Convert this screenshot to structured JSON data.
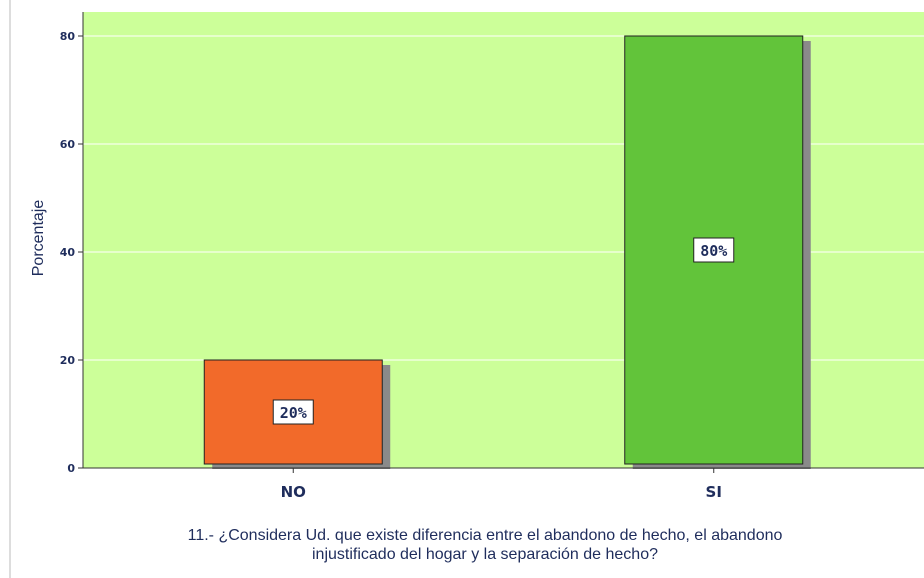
{
  "chart_data": {
    "type": "bar",
    "categories": [
      "NO",
      "SI"
    ],
    "values": [
      20,
      80
    ],
    "data_labels": [
      "20%",
      "80%"
    ],
    "colors": [
      "#f26a2a",
      "#62c43a"
    ],
    "plot_background": "#ccff99",
    "shadow_color": "#8a8a8a",
    "title": "",
    "ylabel": "Porcentaje",
    "xlabel_lines": [
      "11.- ¿Considera Ud. que existe diferencia entre el abandono de hecho, el abandono",
      "injustificado del hogar y la separación de hecho?"
    ],
    "yticks": [
      0,
      20,
      40,
      60,
      80
    ],
    "ylim": [
      0,
      80
    ],
    "grid": true,
    "legend": "none"
  }
}
